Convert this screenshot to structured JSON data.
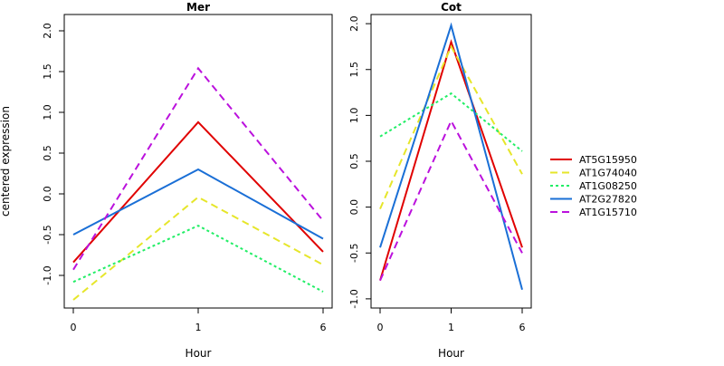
{
  "chart_data": {
    "type": "line",
    "ylabel": "centered expression",
    "categories": [
      "0",
      "1",
      "6"
    ],
    "legend": {
      "placement": "right"
    },
    "panels": [
      {
        "title": "Mer",
        "xlabel": "Hour",
        "ylim": [
          -1.4,
          2.2
        ],
        "yticks": [
          -1.0,
          -0.5,
          0.0,
          0.5,
          1.0,
          1.5,
          2.0
        ],
        "yticklabels": [
          "-1.0",
          "-0.5",
          "0.0",
          "0.5",
          "1.0",
          "1.5",
          "2.0"
        ],
        "series": [
          {
            "name": "AT5G15950",
            "values": [
              -0.84,
              0.88,
              -0.71
            ]
          },
          {
            "name": "AT1G74040",
            "values": [
              -1.3,
              -0.04,
              -0.87
            ]
          },
          {
            "name": "AT1G08250",
            "values": [
              -1.08,
              -0.39,
              -1.2
            ]
          },
          {
            "name": "AT2G27820",
            "values": [
              -0.5,
              0.3,
              -0.55
            ]
          },
          {
            "name": "AT1G15710",
            "values": [
              -0.93,
              1.54,
              -0.33
            ]
          }
        ]
      },
      {
        "title": "Cot",
        "xlabel": "Hour",
        "ylim": [
          -1.1,
          2.1
        ],
        "yticks": [
          -1.0,
          -0.5,
          0.0,
          0.5,
          1.0,
          1.5,
          2.0
        ],
        "yticklabels": [
          "-1.0",
          "-0.5",
          "0.0",
          "0.5",
          "1.0",
          "1.5",
          "2.0"
        ],
        "series": [
          {
            "name": "AT5G15950",
            "values": [
              -0.8,
              1.8,
              -0.44
            ]
          },
          {
            "name": "AT1G74040",
            "values": [
              -0.02,
              1.75,
              0.36
            ]
          },
          {
            "name": "AT1G08250",
            "values": [
              0.77,
              1.24,
              0.61
            ]
          },
          {
            "name": "AT2G27820",
            "values": [
              -0.44,
              1.98,
              -0.9
            ]
          },
          {
            "name": "AT1G15710",
            "values": [
              -0.8,
              0.94,
              -0.5
            ]
          }
        ]
      }
    ],
    "series_styles": [
      {
        "name": "AT5G15950",
        "color": "#e00000",
        "dash": "solid"
      },
      {
        "name": "AT1G74040",
        "color": "#e6e62a",
        "dash": "dashed"
      },
      {
        "name": "AT1G08250",
        "color": "#22ee66",
        "dash": "dotted"
      },
      {
        "name": "AT2G27820",
        "color": "#1a6fd6",
        "dash": "solid"
      },
      {
        "name": "AT1G15710",
        "color": "#bb11dd",
        "dash": "dashed"
      }
    ]
  }
}
